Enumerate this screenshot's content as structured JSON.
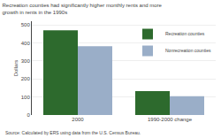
{
  "chart_data": {
    "type": "bar",
    "title": "Recreation counties had significantly higher monthly rents and more\ngrowth in rents in the 1990s",
    "ylabel": "Dollars",
    "categories": [
      "2000",
      "1990-2000 change"
    ],
    "series": [
      {
        "name": "Recreation counties",
        "color": "#2d6a2d",
        "values": [
          470,
          132
        ]
      },
      {
        "name": "Nonrecreation counties",
        "color": "#9aaec8",
        "values": [
          382,
          104
        ]
      }
    ],
    "ylim": [
      0,
      520
    ],
    "yticks": [
      0,
      100,
      200,
      300,
      400,
      500
    ],
    "grid": true,
    "legend": "upper right",
    "annotations": [
      "Source: Calculated by ERS using data from the U.S. Census Bureau."
    ]
  }
}
